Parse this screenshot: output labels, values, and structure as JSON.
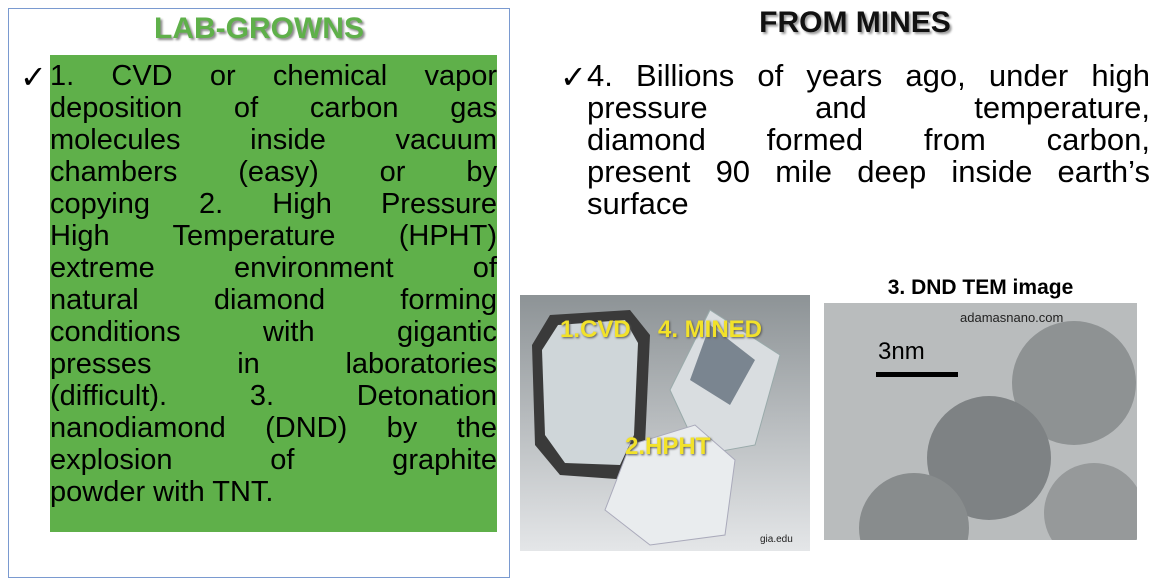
{
  "left": {
    "title": "LAB-GROWNS",
    "bullet": "✓",
    "lines": [
      "1. CVD or chemical vapor",
      "deposition of carbon gas",
      "molecules inside vacuum",
      "chambers (easy) or by",
      "copying 2. High Pressure",
      "High Temperature (HPHT)",
      "extreme environment of",
      "natural diamond forming",
      "conditions with gigantic",
      "presses in laboratories",
      "(difficult). 3. Detonation",
      "nanodiamond (DND) by the",
      "explosion of graphite",
      "powder with TNT."
    ]
  },
  "right": {
    "title": "FROM MINES",
    "bullet": "✓",
    "lines": [
      "4. Billions of years ago, under high",
      "pressure and temperature,",
      "diamond formed from carbon,",
      "present 90 mile deep inside earth’s",
      "surface"
    ]
  },
  "photo": {
    "labels": [
      "1.CVD",
      "4. MINED",
      "2.HPHT"
    ],
    "credit": "gia.edu"
  },
  "tem": {
    "title": "3. DND TEM image",
    "credit": "adamasnano.com",
    "scale": "3nm"
  }
}
